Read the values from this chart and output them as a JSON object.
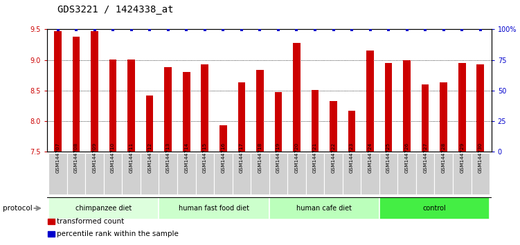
{
  "title": "GDS3221 / 1424338_at",
  "samples": [
    "GSM144707",
    "GSM144708",
    "GSM144709",
    "GSM144710",
    "GSM144711",
    "GSM144712",
    "GSM144713",
    "GSM144714",
    "GSM144715",
    "GSM144716",
    "GSM144717",
    "GSM144718",
    "GSM144719",
    "GSM144720",
    "GSM144721",
    "GSM144722",
    "GSM144723",
    "GSM144724",
    "GSM144725",
    "GSM144726",
    "GSM144727",
    "GSM144728",
    "GSM144729",
    "GSM144730"
  ],
  "bar_values": [
    9.47,
    9.38,
    9.47,
    9.01,
    9.01,
    8.42,
    8.88,
    8.81,
    8.93,
    7.93,
    8.63,
    8.84,
    8.48,
    9.28,
    8.51,
    8.33,
    8.17,
    9.15,
    8.95,
    9.0,
    8.6,
    8.63,
    8.95,
    8.93
  ],
  "ylim": [
    7.5,
    9.5
  ],
  "y2lim": [
    0,
    100
  ],
  "yticks": [
    7.5,
    8.0,
    8.5,
    9.0,
    9.5
  ],
  "y2ticks": [
    0,
    25,
    50,
    75,
    100
  ],
  "bar_color": "#cc0000",
  "percentile_color": "#0000cc",
  "groups": [
    {
      "label": "chimpanzee diet",
      "start": 0,
      "end": 6,
      "color": "#ddffdd"
    },
    {
      "label": "human fast food diet",
      "start": 6,
      "end": 12,
      "color": "#ccffcc"
    },
    {
      "label": "human cafe diet",
      "start": 12,
      "end": 18,
      "color": "#bbffbb"
    },
    {
      "label": "control",
      "start": 18,
      "end": 24,
      "color": "#44ee44"
    }
  ],
  "protocol_label": "protocol",
  "legend_items": [
    {
      "label": "transformed count",
      "color": "#cc0000"
    },
    {
      "label": "percentile rank within the sample",
      "color": "#0000cc"
    }
  ],
  "title_fontsize": 10,
  "tick_fontsize": 7,
  "label_fontsize": 7,
  "bar_width": 0.4
}
